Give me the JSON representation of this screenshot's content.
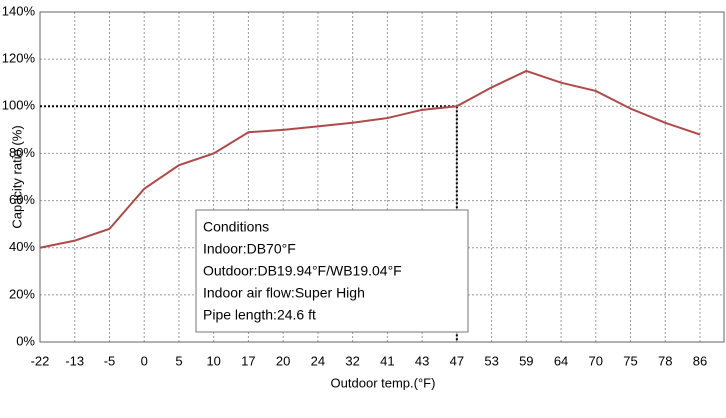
{
  "chart_data": {
    "type": "line",
    "x_label": "Outdoor temp.(°F)",
    "y_label": "Capacity ratio (%)",
    "categories": [
      "-22",
      "-13",
      "-5",
      "0",
      "5",
      "10",
      "17",
      "20",
      "24",
      "32",
      "41",
      "43",
      "47",
      "53",
      "59",
      "64",
      "70",
      "75",
      "78",
      "86"
    ],
    "series": [
      {
        "color": "#b04a4a",
        "values": [
          40,
          43,
          48,
          65,
          75,
          80,
          89,
          90,
          91.5,
          93,
          95,
          98.5,
          100,
          108,
          115,
          110,
          106.5,
          99,
          93,
          88
        ]
      }
    ],
    "ylim": [
      0,
      140
    ],
    "yticks": [
      {
        "value": 0,
        "label": "0%"
      },
      {
        "value": 20,
        "label": "20%"
      },
      {
        "value": 40,
        "label": "40%"
      },
      {
        "value": 60,
        "label": "60%"
      },
      {
        "value": 80,
        "label": "80%"
      },
      {
        "value": 100,
        "label": "100%"
      },
      {
        "value": 120,
        "label": "120%"
      },
      {
        "value": 140,
        "label": "140%"
      }
    ],
    "grid": true,
    "conditions": [
      "Conditions",
      "Indoor:DB70°F",
      "Outdoor:DB19.94°F/WB19.04°F",
      "Indoor air flow:Super High",
      "Pipe length:24.6 ft"
    ]
  }
}
